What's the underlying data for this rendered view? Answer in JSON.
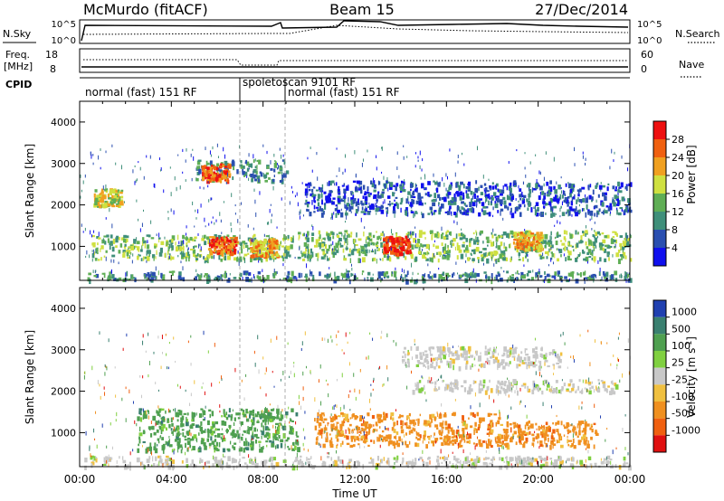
{
  "header": {
    "station": "McMurdo (fitACF)",
    "beam": "Beam 15",
    "date": "27/Dec/2014"
  },
  "strip": {
    "nsky_label": "N.Sky",
    "nsearch_label": "N.Search",
    "nsky_ticks": [
      "10^5",
      "10^0"
    ],
    "freq_label_1": "Freq.",
    "freq_label_2": "[MHz]",
    "freq_ticks": [
      "18",
      "8"
    ],
    "nave_label": "Nave",
    "nave_ticks": [
      "60",
      "0"
    ],
    "cpid_label": "CPID",
    "cpid_segments": [
      {
        "label": "normal (fast) 151 RF",
        "start_hour": 0.0
      },
      {
        "label": "spoletoscan 9101 RF",
        "start_hour": 7.0
      },
      {
        "label": "normal (fast) 151 RF",
        "start_hour": 9.0
      }
    ]
  },
  "chart_data": [
    {
      "type": "heatmap",
      "name": "power",
      "ylabel": "Slant Range [km]",
      "xlim": [
        0,
        24
      ],
      "ylim": [
        180,
        4500
      ],
      "yticks": [
        "1000",
        "2000",
        "3000",
        "4000"
      ],
      "colorbar_label": "Power [dB]",
      "colorbar_ticks": [
        "4",
        "8",
        "12",
        "16",
        "20",
        "24",
        "28"
      ],
      "colors": [
        "#1010ee",
        "#2a4fb0",
        "#3f8f7a",
        "#5fae55",
        "#cfe040",
        "#f0a020",
        "#f06010",
        "#ee1010"
      ],
      "bands": [
        {
          "x": [
            0.2,
            24
          ],
          "y": [
            200,
            420
          ],
          "level": 2
        },
        {
          "x": [
            0.5,
            9.3
          ],
          "y": [
            700,
            1300
          ],
          "level": 3
        },
        {
          "x": [
            9.5,
            24
          ],
          "y": [
            700,
            1400
          ],
          "level": 3
        },
        {
          "x": [
            9.8,
            24
          ],
          "y": [
            1800,
            2600
          ],
          "level": 1
        },
        {
          "x": [
            5,
            9
          ],
          "y": [
            2600,
            3100
          ],
          "level": 2
        }
      ],
      "hotspots": [
        {
          "x": 6.2,
          "y": 1050,
          "level": 6
        },
        {
          "x": 13.8,
          "y": 1050,
          "level": 7
        },
        {
          "x": 5.9,
          "y": 2800,
          "level": 6
        },
        {
          "x": 8.0,
          "y": 1000,
          "level": 5
        },
        {
          "x": 19.5,
          "y": 1150,
          "level": 5
        },
        {
          "x": 1.2,
          "y": 2200,
          "level": 4
        }
      ]
    },
    {
      "type": "heatmap",
      "name": "velocity",
      "xlabel": "Time UT",
      "ylabel": "Slant Range [km]",
      "xlim": [
        0,
        24
      ],
      "ylim": [
        180,
        4500
      ],
      "xticks": [
        "00:00",
        "04:00",
        "08:00",
        "12:00",
        "16:00",
        "20:00",
        "00:00"
      ],
      "yticks": [
        "1000",
        "2000",
        "3000",
        "4000"
      ],
      "colorbar_label": "Velocity [m s^-1]",
      "colorbar_ticks": [
        "1000",
        "500",
        "100",
        "25",
        "-25",
        "-100",
        "-500",
        "-1000"
      ],
      "colors": [
        "#2040b0",
        "#3a8070",
        "#4fa050",
        "#80d040",
        "#c8c8c8",
        "#f0c040",
        "#f09020",
        "#f06010",
        "#e01010"
      ],
      "regions": [
        {
          "x": [
            2.5,
            9.5
          ],
          "y": [
            600,
            1600
          ],
          "color_index": 2
        },
        {
          "x": [
            10.2,
            18.5
          ],
          "y": [
            700,
            1500
          ],
          "color_index": 6
        },
        {
          "x": [
            18.5,
            22.5
          ],
          "y": [
            700,
            1300
          ],
          "color_index": 6
        },
        {
          "x": [
            14.5,
            23.5
          ],
          "y": [
            2000,
            2300
          ],
          "color_index": 4
        },
        {
          "x": [
            14.0,
            21.0
          ],
          "y": [
            2600,
            3100
          ],
          "color_index": 4
        },
        {
          "x": [
            0.2,
            24
          ],
          "y": [
            200,
            450
          ],
          "color_index": 4
        }
      ]
    }
  ]
}
